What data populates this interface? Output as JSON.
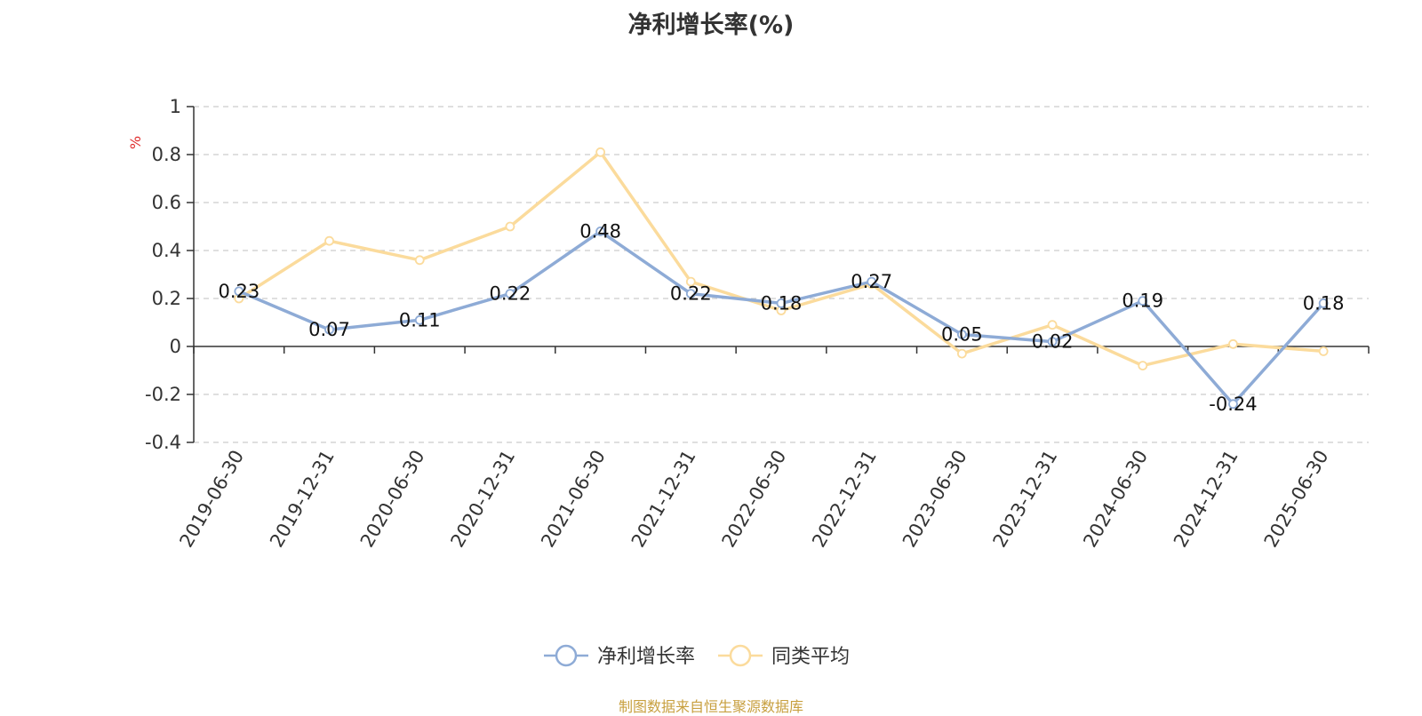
{
  "chart_data": {
    "type": "line",
    "title": "净利增长率(%)",
    "ylabel": "%",
    "ylim": [
      -0.4,
      1
    ],
    "yticks": [
      -0.4,
      -0.2,
      0,
      0.2,
      0.4,
      0.6,
      0.8,
      1
    ],
    "grid": true,
    "legend_position": "bottom-center",
    "categories": [
      "2019-06-30",
      "2019-12-31",
      "2020-06-30",
      "2020-12-31",
      "2021-06-30",
      "2021-12-31",
      "2022-06-30",
      "2022-12-31",
      "2023-06-30",
      "2023-12-31",
      "2024-06-30",
      "2024-12-31",
      "2025-06-30"
    ],
    "series": [
      {
        "name": "净利增长率",
        "color": "#8eabd6",
        "values": [
          0.23,
          0.07,
          0.11,
          0.22,
          0.48,
          0.22,
          0.18,
          0.27,
          0.05,
          0.02,
          0.19,
          -0.24,
          0.18
        ],
        "labels": [
          "0.23",
          "0.07",
          "0.11",
          "0.22",
          "0.48",
          "0.22",
          "0.18",
          "0.27",
          "0.05",
          "0.02",
          "0.19",
          "-0.24",
          "0.18"
        ]
      },
      {
        "name": "同类平均",
        "color": "#fbdb9c",
        "values": [
          0.2,
          0.44,
          0.36,
          0.5,
          0.81,
          0.27,
          0.15,
          0.26,
          -0.03,
          0.09,
          -0.08,
          0.01,
          -0.02
        ]
      }
    ],
    "source": "制图数据来自恒生聚源数据库"
  }
}
